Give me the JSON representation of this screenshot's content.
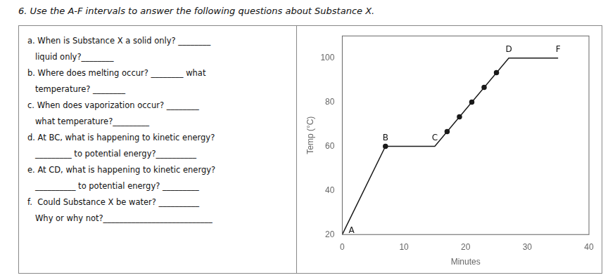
{
  "chart_data": {
    "type": "line",
    "title": "6. Use the A-F intervals to answer the following questions about Substance X.",
    "x_label": "Minutes",
    "y_label": "Temp (°C)",
    "xlim": [
      0,
      40
    ],
    "ylim": [
      20,
      110
    ],
    "xticks": [
      0,
      10,
      20,
      30,
      40
    ],
    "yticks": [
      20,
      40,
      60,
      80,
      100
    ],
    "grid": false,
    "series": [
      {
        "type": "line",
        "color": "#1a1a1a",
        "marker": "none",
        "x": [
          0,
          7,
          15,
          27,
          35
        ],
        "values": [
          20,
          60,
          60,
          100,
          100
        ]
      },
      {
        "type": "scatter",
        "color": "#1a1a1a",
        "marker": "circle",
        "x": [
          7,
          17,
          19,
          21,
          23,
          25
        ],
        "values": [
          60,
          66.66666666666667,
          73.33333333333333,
          80,
          86.66666666666667,
          93.33333333333333
        ]
      }
    ],
    "annotations": [
      {
        "text": "A",
        "x": 0,
        "y": 20
      },
      {
        "text": "B",
        "x": 7,
        "y": 60
      },
      {
        "text": "C",
        "x": 15,
        "y": 60
      },
      {
        "text": "D",
        "x": 27,
        "y": 100
      },
      {
        "text": "F",
        "x": 35,
        "y": 100
      },
      {
        "text": "a. When is Substance X a solid only? ________"
      },
      {
        "text": "   liquid only?________"
      },
      {
        "text": "b. Where does melting occur? ________ what"
      },
      {
        "text": "   temperature? ________"
      },
      {
        "text": "c. When does vaporization occur? ________"
      },
      {
        "text": "   what temperature?_________"
      },
      {
        "text": "d. At BC, what is happening to kinetic energy?"
      },
      {
        "text": "   _________ to potential energy?__________"
      },
      {
        "text": "e. At CD, what is happening to kinetic energy?"
      },
      {
        "text": "   __________ to potential energy? _________"
      },
      {
        "text": "f.  Could Substance X be water? __________"
      },
      {
        "text": "   Why or why not?___________________________"
      }
    ]
  }
}
